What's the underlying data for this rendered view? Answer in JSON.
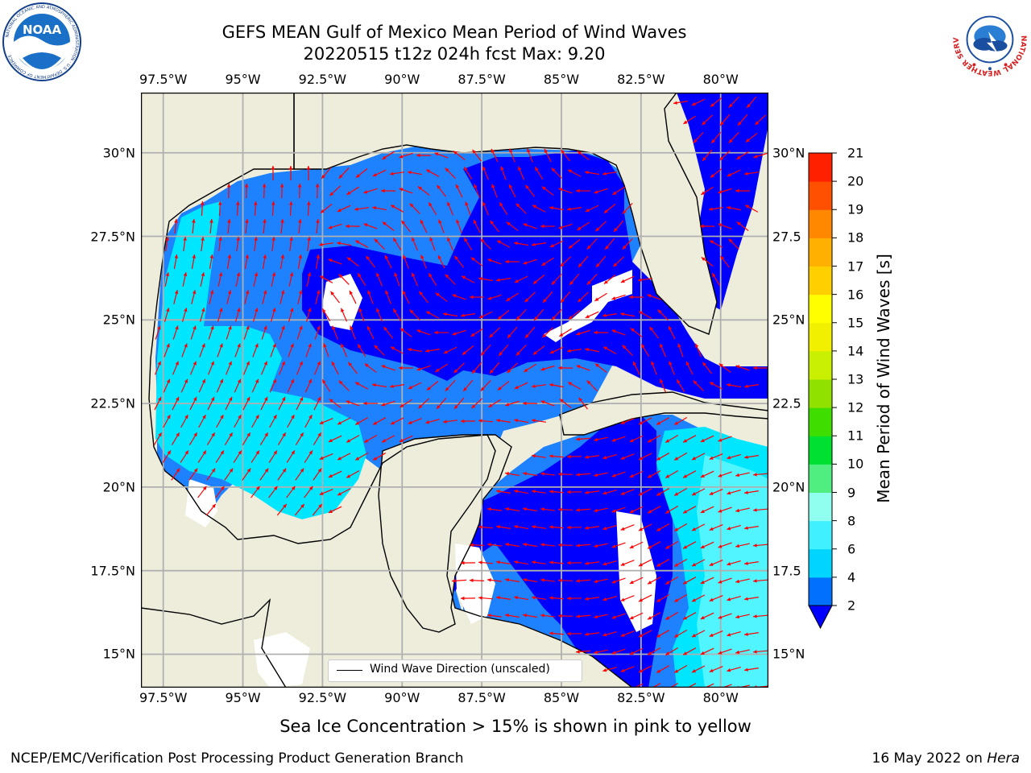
{
  "header": {
    "title_line1": "GEFS MEAN Gulf of Mexico Mean Period of Wind Waves",
    "title_line2": "20220515 t12z 024h fcst   Max: 9.20"
  },
  "logos": {
    "noaa_text": "NOAA",
    "noaa_ring_text": "NATIONAL OCEANIC AND ATMOSPHERIC ADMINISTRATION · U.S. DEPARTMENT OF COMMERCE",
    "nws_ring_text": "NATIONAL WEATHER SERVICE"
  },
  "axes": {
    "lon_labels": [
      "97.5°W",
      "95°W",
      "92.5°W",
      "90°W",
      "87.5°W",
      "85°W",
      "82.5°W",
      "80°W"
    ],
    "lon_values": [
      -97.5,
      -95,
      -92.5,
      -90,
      -87.5,
      -85,
      -82.5,
      -80
    ],
    "lat_labels_left": [
      "30°N",
      "27.5°N",
      "25°N",
      "22.5°N",
      "20°N",
      "17.5°N",
      "15°N"
    ],
    "lat_labels_right": [
      "30°N",
      "27.5",
      "25°N",
      "22.5",
      "20°N",
      "17.5",
      "15°N"
    ],
    "lat_values": [
      30,
      27.5,
      25,
      22.5,
      20,
      17.5,
      15
    ],
    "lon_range": [
      -98.2,
      -78.5
    ],
    "lat_range": [
      14.0,
      31.8
    ],
    "gridlines": true
  },
  "legend": {
    "label": "Wind Wave Direction (unscaled)",
    "placement": "bottom-center"
  },
  "colorbar": {
    "label": "Mean Period of Wind Waves [s]",
    "ticks": [
      "2",
      "4",
      "6",
      "8",
      "9",
      "10",
      "11",
      "12",
      "13",
      "14",
      "15",
      "16",
      "17",
      "18",
      "19",
      "20",
      "21"
    ],
    "colors": [
      "#0070ff",
      "#00d4ff",
      "#40f0ff",
      "#90fff0",
      "#50ee80",
      "#00e030",
      "#40dd00",
      "#90e000",
      "#c8f000",
      "#f0f000",
      "#ffff00",
      "#ffd000",
      "#ffb000",
      "#ff8800",
      "#ff5000",
      "#ff2000"
    ],
    "extend_color": "#0000ff"
  },
  "map_colors": {
    "land": "#eeeddc",
    "coast": "#000000",
    "arrows": "#ff0000",
    "lt2": "#0000ff",
    "p2_4": "#1e82ff",
    "p4_6": "#00e6ff",
    "p6_8": "#50f5ff",
    "p8_9": "#a0fff5"
  },
  "footer": {
    "note": "Sea Ice Concentration > 15% is shown in pink to yellow",
    "credit": "NCEP/EMC/Verification Post Processing Product Generation Branch",
    "date_prefix": "16 May 2022 on ",
    "date_host": "Hera"
  }
}
